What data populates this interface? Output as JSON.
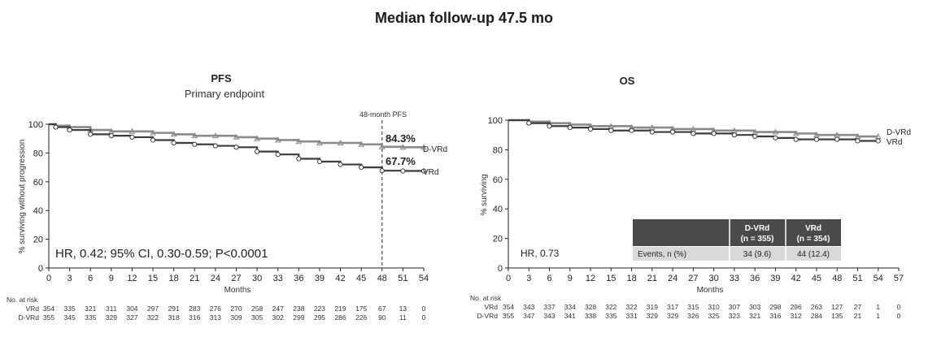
{
  "main_title": "Median follow-up 47.5 mo",
  "chart_data": [
    {
      "type": "line",
      "title": "PFS",
      "subtitle": "Primary endpoint",
      "ylabel": "% surviving without progression",
      "xlabel": "Months",
      "xlim": [
        0,
        54
      ],
      "ylim": [
        0,
        100
      ],
      "x_ticks": [
        0,
        3,
        6,
        9,
        12,
        15,
        18,
        21,
        24,
        27,
        30,
        33,
        36,
        39,
        42,
        45,
        48,
        51,
        54
      ],
      "y_ticks": [
        0,
        20,
        40,
        60,
        80,
        100
      ],
      "ref_line": {
        "x": 48,
        "label": "48-month PFS"
      },
      "series": [
        {
          "name": "D-VRd",
          "end_label": "D-VRd",
          "value_at_48_label": "84.3%",
          "color": "#8a8a8a",
          "x": [
            0,
            1,
            3,
            6,
            9,
            12,
            15,
            18,
            21,
            24,
            27,
            30,
            33,
            36,
            39,
            42,
            45,
            48,
            51,
            54
          ],
          "y": [
            100,
            99,
            98,
            96,
            95,
            95,
            94,
            93,
            92,
            92,
            91,
            90,
            89,
            88,
            87,
            87,
            86,
            84.3,
            84,
            84
          ]
        },
        {
          "name": "VRd",
          "end_label": "VRd",
          "value_at_48_label": "67.7%",
          "color": "#3c3c3c",
          "x": [
            0,
            1,
            3,
            6,
            9,
            12,
            15,
            18,
            21,
            24,
            27,
            30,
            33,
            36,
            39,
            42,
            45,
            48,
            51,
            54
          ],
          "y": [
            100,
            98,
            96,
            93,
            92,
            91,
            89,
            87,
            86,
            85,
            84,
            81,
            79,
            76,
            74,
            72,
            70,
            67.7,
            67.5,
            67.5
          ]
        }
      ],
      "hr_text": "HR, 0.42; 95% CI, 0.30-0.59; P<0.0001",
      "risk_table": {
        "header": "No. at risk",
        "rows": [
          {
            "label": "VRd",
            "values": [
              "354",
              "335",
              "321",
              "311",
              "304",
              "297",
              "291",
              "283",
              "276",
              "270",
              "258",
              "247",
              "238",
              "223",
              "219",
              "175",
              "67",
              "13",
              "0"
            ]
          },
          {
            "label": "D-VRd",
            "values": [
              "355",
              "345",
              "335",
              "329",
              "327",
              "322",
              "318",
              "316",
              "313",
              "309",
              "305",
              "302",
              "299",
              "295",
              "286",
              "226",
              "90",
              "11",
              "0"
            ]
          }
        ]
      }
    },
    {
      "type": "line",
      "title": "OS",
      "ylabel": "% surviving",
      "xlabel": "Months",
      "xlim": [
        0,
        57
      ],
      "ylim": [
        0,
        100
      ],
      "x_ticks": [
        0,
        3,
        6,
        9,
        12,
        15,
        18,
        21,
        24,
        27,
        30,
        33,
        36,
        39,
        42,
        45,
        48,
        51,
        54,
        57
      ],
      "y_ticks": [
        0,
        20,
        40,
        60,
        80,
        100
      ],
      "series": [
        {
          "name": "D-VRd",
          "end_label": "D-VRd",
          "color": "#8a8a8a",
          "x": [
            0,
            3,
            6,
            9,
            12,
            15,
            18,
            21,
            24,
            27,
            30,
            33,
            36,
            39,
            42,
            45,
            48,
            51,
            54
          ],
          "y": [
            100,
            99,
            98,
            97,
            96,
            96,
            95,
            95,
            94,
            94,
            93,
            93,
            92,
            92,
            91,
            90,
            90,
            89,
            89
          ]
        },
        {
          "name": "VRd",
          "end_label": "VRd",
          "color": "#3c3c3c",
          "x": [
            0,
            3,
            6,
            9,
            12,
            15,
            18,
            21,
            24,
            27,
            30,
            33,
            36,
            39,
            42,
            45,
            48,
            51,
            54
          ],
          "y": [
            100,
            98,
            96,
            95,
            94,
            93,
            93,
            92,
            92,
            91,
            91,
            90,
            89,
            88,
            87,
            87,
            87,
            86,
            86
          ]
        }
      ],
      "hr_text": "HR, 0.73",
      "events_table": {
        "row_label": "Events, n (%)",
        "columns": [
          {
            "header": "D-VRd",
            "sub": "(n = 355)",
            "value": "34 (9.6)"
          },
          {
            "header": "VRd",
            "sub": "(n = 354)",
            "value": "44 (12.4)"
          }
        ]
      },
      "risk_table": {
        "header": "No. at risk",
        "rows": [
          {
            "label": "VRd",
            "values": [
              "354",
              "343",
              "337",
              "334",
              "328",
              "322",
              "322",
              "319",
              "317",
              "315",
              "310",
              "307",
              "303",
              "298",
              "296",
              "263",
              "127",
              "27",
              "1",
              "0"
            ]
          },
          {
            "label": "D-VRd",
            "values": [
              "355",
              "347",
              "343",
              "341",
              "338",
              "335",
              "331",
              "329",
              "329",
              "326",
              "325",
              "323",
              "321",
              "316",
              "312",
              "284",
              "135",
              "21",
              "1",
              "0"
            ]
          }
        ]
      }
    }
  ]
}
